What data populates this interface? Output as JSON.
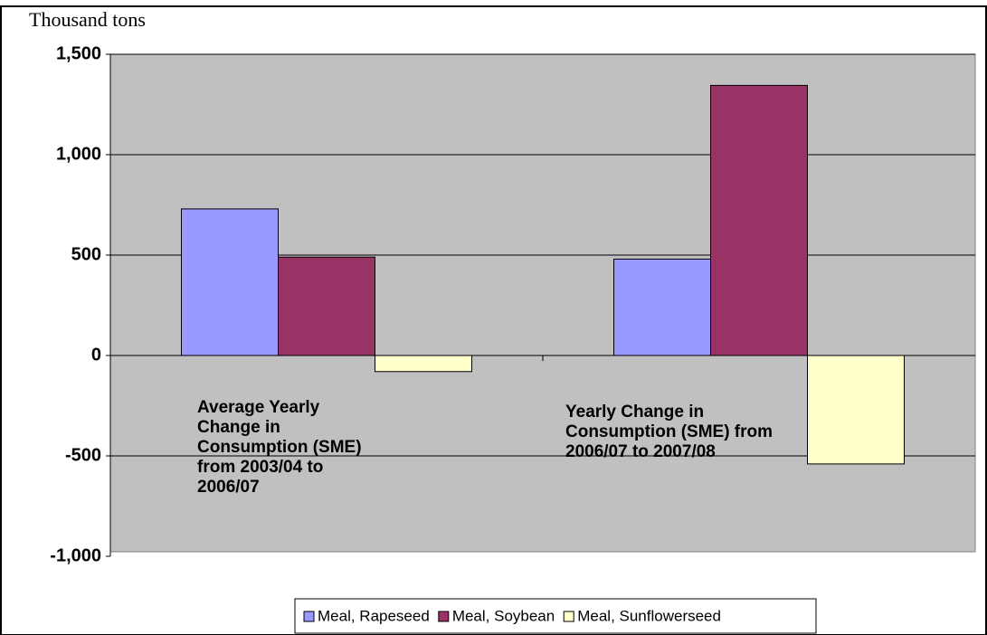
{
  "chart_data": {
    "type": "bar",
    "y_label": "Thousand tons",
    "categories": [
      "Average Yearly Change in Consumption (SME) from 2003/04 to 2006/07",
      "Yearly Change in Consumption (SME) from 2006/07 to 2007/08"
    ],
    "series": [
      {
        "name": "Meal, Rapeseed",
        "color": "#9999ff",
        "values": [
          730,
          480
        ]
      },
      {
        "name": "Meal, Soybean",
        "color": "#993366",
        "values": [
          490,
          1345
        ]
      },
      {
        "name": "Meal, Sunflowerseed",
        "color": "#ffffcc",
        "values": [
          -80,
          -540
        ]
      }
    ],
    "ylim": [
      -1000,
      1500
    ],
    "yticks": [
      {
        "value": -1000,
        "label": "-1,000"
      },
      -500,
      0,
      500,
      {
        "value": 1000,
        "label": "1,000"
      },
      {
        "value": 1500,
        "label": "1,500"
      }
    ],
    "grid": true,
    "plot_background": "#c0c0c0",
    "legend": "bottom"
  }
}
